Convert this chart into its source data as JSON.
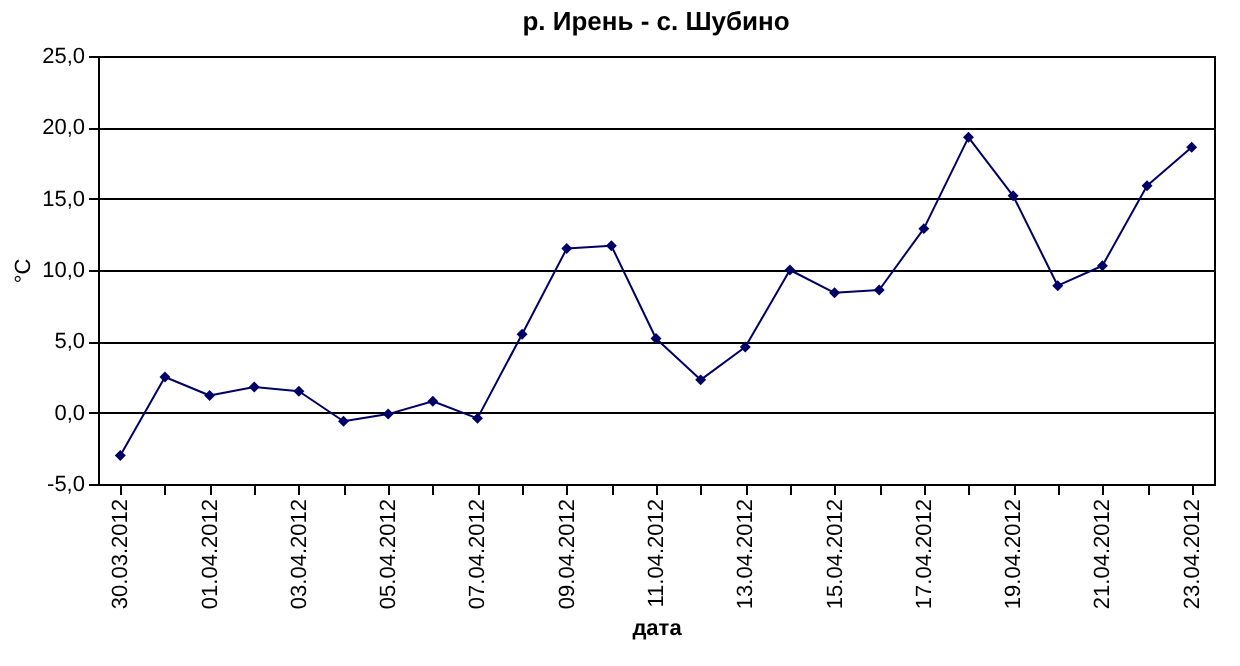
{
  "chart_data": {
    "type": "line",
    "title": "р. Ирень - с. Шубино",
    "xlabel": "дата",
    "ylabel": "°C",
    "categories": [
      "30.03.2012",
      null,
      "01.04.2012",
      null,
      "03.04.2012",
      null,
      "05.04.2012",
      null,
      "07.04.2012",
      null,
      "09.04.2012",
      null,
      "11.04.2012",
      null,
      "13.04.2012",
      null,
      "15.04.2012",
      null,
      "17.04.2012",
      null,
      "19.04.2012",
      null,
      "21.04.2012",
      null,
      "23.04.2012"
    ],
    "series": [
      {
        "color": "#000066",
        "values": [
          -3.0,
          2.5,
          1.2,
          1.8,
          1.5,
          -0.6,
          -0.1,
          0.8,
          -0.4,
          5.5,
          11.5,
          11.7,
          5.2,
          2.3,
          4.6,
          10.0,
          8.4,
          8.6,
          12.9,
          19.3,
          15.2,
          8.9,
          10.3,
          15.9,
          18.6
        ]
      }
    ],
    "ylim": [
      -5,
      25
    ],
    "yticks": [
      {
        "value": -5,
        "label": "-5,0"
      },
      {
        "value": 0,
        "label": "0,0"
      },
      {
        "value": 5,
        "label": "5,0"
      },
      {
        "value": 10,
        "label": "10,0"
      },
      {
        "value": 15,
        "label": "15,0"
      },
      {
        "value": 20,
        "label": "20,0"
      },
      {
        "value": 25,
        "label": "25,0"
      }
    ],
    "grid": "y",
    "marker": "diamond"
  }
}
